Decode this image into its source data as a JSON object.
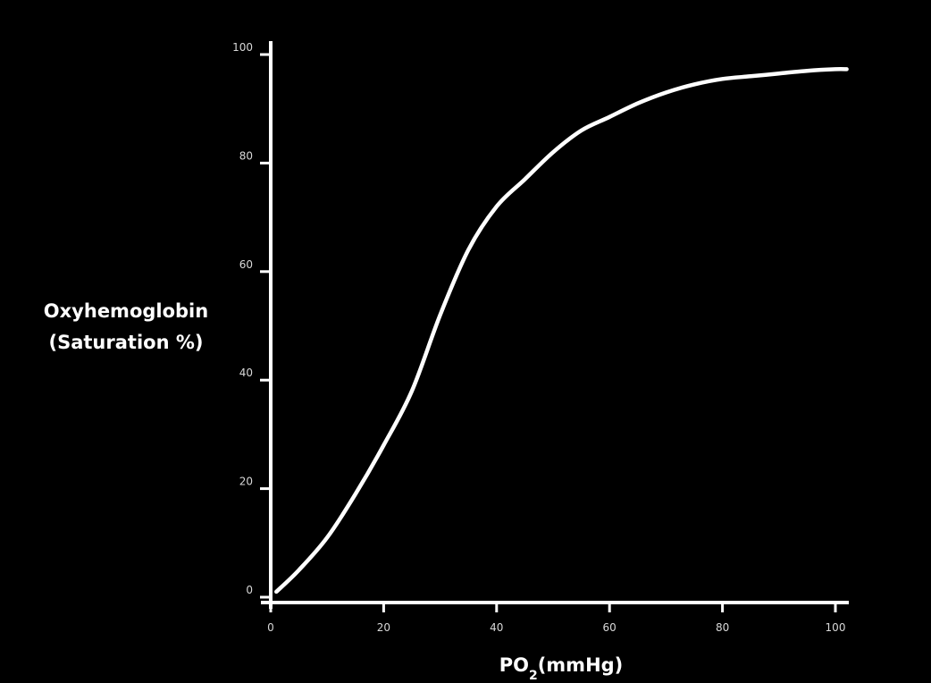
{
  "chart_data": {
    "type": "line",
    "title": "",
    "ylabel_lines": [
      "Oxyhemoglobin",
      "(Saturation %)"
    ],
    "xlabel": {
      "main": "PO",
      "subscript": "2",
      "suffix": "(mmHg)"
    },
    "xlim": [
      0,
      100
    ],
    "ylim": [
      0,
      100
    ],
    "x_ticks": [
      0,
      20,
      40,
      60,
      80,
      100
    ],
    "y_ticks": [
      0,
      20,
      40,
      60,
      80,
      100
    ],
    "x_tick_labels": [
      "0",
      "20",
      "40",
      "60",
      "80",
      "100"
    ],
    "y_tick_labels": [
      "0",
      "20",
      "40",
      "60",
      "80",
      "100"
    ],
    "grid": false,
    "colors": {
      "background": "#000000",
      "axis": "#ffffff",
      "line": "#ffffff"
    },
    "series": [
      {
        "x": [
          1,
          5,
          10,
          15,
          20,
          25,
          30,
          35,
          40,
          45,
          50,
          55,
          60,
          65,
          70,
          75,
          80,
          85,
          90,
          95,
          100,
          102
        ],
        "y": [
          1,
          5,
          11,
          19,
          28,
          38,
          52,
          64,
          72,
          77,
          82,
          86,
          88.5,
          91,
          93,
          94.5,
          95.5,
          96,
          96.5,
          97,
          97.3,
          97.3
        ]
      }
    ]
  }
}
